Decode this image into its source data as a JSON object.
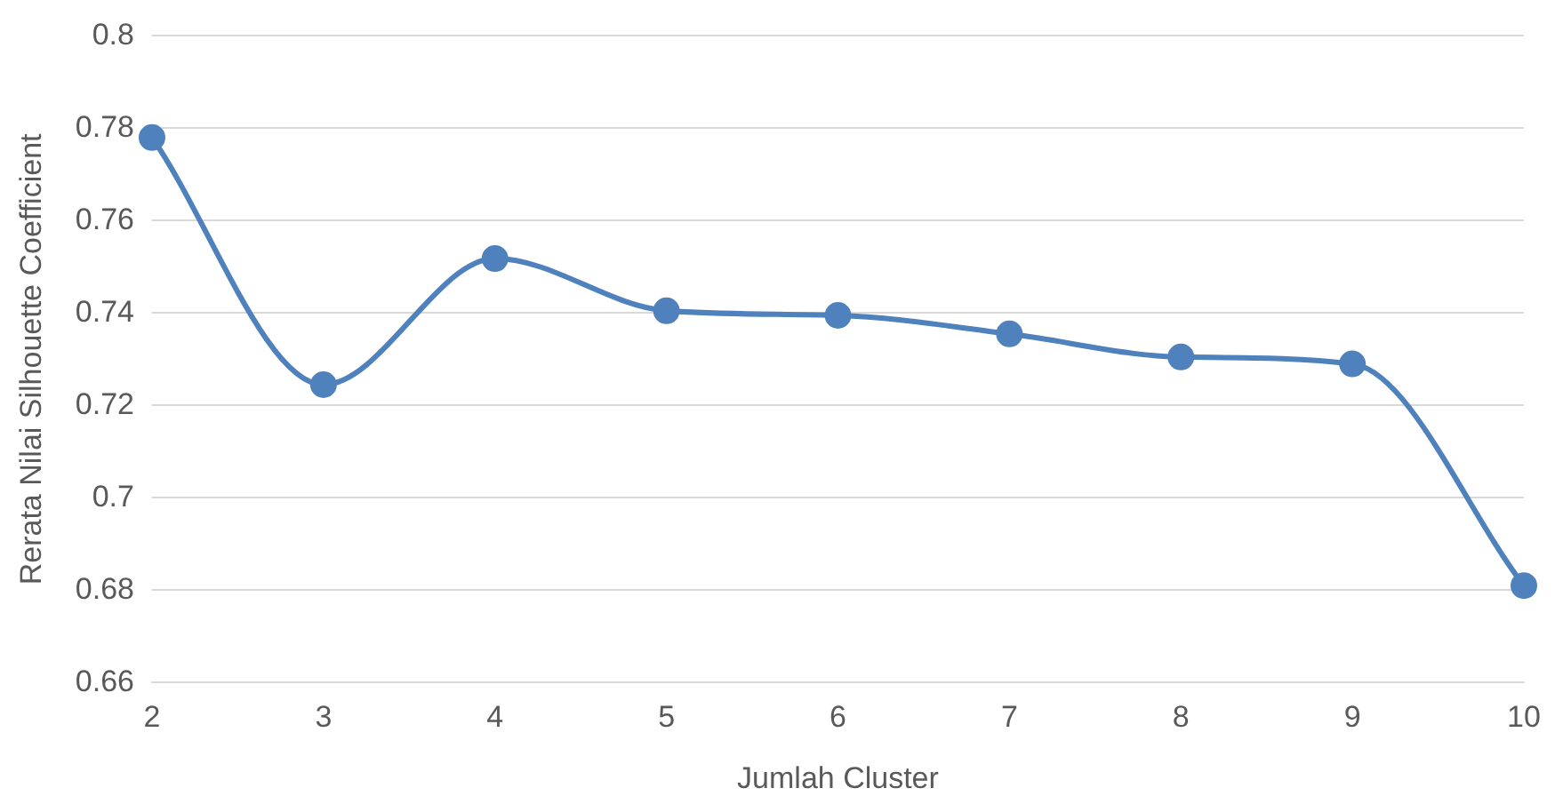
{
  "chart_data": {
    "type": "line",
    "xlabel": "Jumlah Cluster",
    "ylabel": "Rerata Nilai Silhouette Coefficient",
    "categories": [
      "2",
      "3",
      "4",
      "5",
      "6",
      "7",
      "8",
      "9",
      "10"
    ],
    "series": [
      {
        "color": "#4f81bd",
        "values": [
          0.778,
          0.7245,
          0.7518,
          0.7405,
          0.7395,
          0.7355,
          0.7305,
          0.729,
          0.681
        ]
      }
    ],
    "ylim": [
      0.66,
      0.8
    ],
    "yticks": [
      0.66,
      0.68,
      0.7,
      0.72,
      0.74,
      0.76,
      0.78,
      0.8
    ],
    "grid": "y",
    "legend": false,
    "marker": "circle",
    "line_style": "solid"
  }
}
